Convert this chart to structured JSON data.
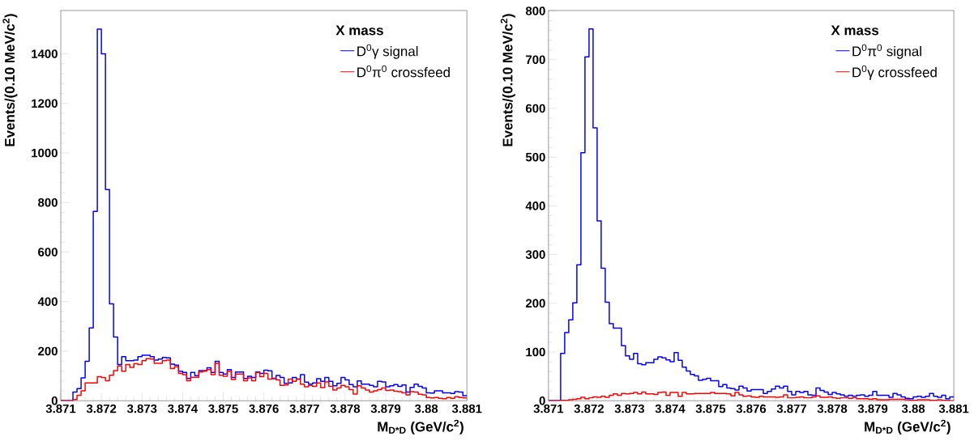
{
  "chart_data": [
    {
      "type": "histogram",
      "xlabel": "M$_{D*D}$ (GeV/c$^{2}$)",
      "ylabel": "Events/(0.10 MeV/c$^{2}$)",
      "legend_title": "X mass",
      "legend": "top right",
      "bins": [
        3.871,
        3.8711,
        3.8712,
        3.8713,
        3.8714,
        3.8715,
        3.8716,
        3.8717,
        3.8718,
        3.8719,
        3.872,
        3.8721,
        3.8722,
        3.8723,
        3.8724,
        3.8725,
        3.8726,
        3.8727,
        3.8728,
        3.8729,
        3.873,
        3.8731,
        3.8732,
        3.8733,
        3.8734,
        3.8735,
        3.8736,
        3.8737,
        3.8738,
        3.8739,
        3.874,
        3.8741,
        3.8742,
        3.8743,
        3.8744,
        3.8745,
        3.8746,
        3.8747,
        3.8748,
        3.8749,
        3.875,
        3.8751,
        3.8752,
        3.8753,
        3.8754,
        3.8755,
        3.8756,
        3.8757,
        3.8758,
        3.8759,
        3.876,
        3.8761,
        3.8762,
        3.8763,
        3.8764,
        3.8765,
        3.8766,
        3.8767,
        3.8768,
        3.8769,
        3.877,
        3.8771,
        3.8772,
        3.8773,
        3.8774,
        3.8775,
        3.8776,
        3.8777,
        3.8778,
        3.8779,
        3.878,
        3.8781,
        3.8782,
        3.8783,
        3.8784,
        3.8785,
        3.8786,
        3.8787,
        3.8788,
        3.8789,
        3.879,
        3.8791,
        3.8792,
        3.8793,
        3.8794,
        3.8795,
        3.8796,
        3.8797,
        3.8798,
        3.8799,
        3.88,
        3.8801,
        3.8802,
        3.8803,
        3.8804,
        3.8805,
        3.8806,
        3.8807,
        3.8808,
        3.8809,
        3.881
      ],
      "xlim": [
        3.871,
        3.881
      ],
      "xticks": [
        3.871,
        3.872,
        3.873,
        3.874,
        3.875,
        3.876,
        3.877,
        3.878,
        3.879,
        3.88,
        3.881
      ],
      "ylim": [
        0,
        1575
      ],
      "yticks": [
        0,
        200,
        400,
        600,
        800,
        1000,
        1200,
        1400
      ],
      "series": [
        {
          "name": "D$^{0}$γ signal",
          "color": "#0000ff",
          "values": [
            0,
            0,
            0,
            35,
            49,
            92,
            159,
            294,
            764,
            1500,
            1400,
            852,
            391,
            257,
            146,
            178,
            162,
            162,
            164,
            178,
            184,
            184,
            178,
            164,
            168,
            175,
            173,
            148,
            144,
            119,
            114,
            90,
            114,
            101,
            122,
            122,
            133,
            114,
            159,
            114,
            108,
            126,
            94,
            116,
            116,
            90,
            99,
            94,
            116,
            110,
            123,
            121,
            89,
            102,
            94,
            70,
            72,
            94,
            87,
            105,
            75,
            67,
            72,
            89,
            78,
            94,
            78,
            60,
            70,
            94,
            84,
            65,
            56,
            80,
            67,
            67,
            62,
            56,
            78,
            76,
            56,
            60,
            65,
            58,
            64,
            35,
            54,
            67,
            58,
            51,
            32,
            31,
            40,
            40,
            32,
            32,
            29,
            37,
            35,
            20
          ]
        },
        {
          "name": "D$^{0}$π$^{0}$ crossfeed",
          "color": "#ff0000",
          "values": [
            0,
            0,
            0,
            5,
            22,
            40,
            72,
            72,
            72,
            97,
            94,
            81,
            103,
            122,
            140,
            119,
            146,
            135,
            149,
            146,
            162,
            170,
            168,
            151,
            151,
            162,
            164,
            130,
            137,
            110,
            105,
            81,
            95,
            95,
            116,
            119,
            126,
            105,
            151,
            103,
            99,
            119,
            86,
            108,
            108,
            81,
            92,
            81,
            114,
            97,
            110,
            87,
            91,
            84,
            62,
            64,
            87,
            78,
            87,
            67,
            56,
            62,
            58,
            72,
            53,
            76,
            58,
            43,
            51,
            62,
            56,
            45,
            27,
            60,
            51,
            43,
            35,
            40,
            45,
            51,
            42,
            43,
            38,
            37,
            32,
            24,
            37,
            35,
            26,
            24,
            13,
            11,
            13,
            10,
            8,
            13,
            10,
            16,
            13,
            11
          ]
        }
      ]
    },
    {
      "type": "histogram",
      "xlabel": "M$_{D*D}$ (GeV/c$^{2}$)",
      "ylabel": "Events/(0.10 MeV/c$^{2}$)",
      "legend_title": "X mass",
      "legend": "top right",
      "bins": [
        3.871,
        3.8711,
        3.8712,
        3.8713,
        3.8714,
        3.8715,
        3.8716,
        3.8717,
        3.8718,
        3.8719,
        3.872,
        3.8721,
        3.8722,
        3.8723,
        3.8724,
        3.8725,
        3.8726,
        3.8727,
        3.8728,
        3.8729,
        3.873,
        3.8731,
        3.8732,
        3.8733,
        3.8734,
        3.8735,
        3.8736,
        3.8737,
        3.8738,
        3.8739,
        3.874,
        3.8741,
        3.8742,
        3.8743,
        3.8744,
        3.8745,
        3.8746,
        3.8747,
        3.8748,
        3.8749,
        3.875,
        3.8751,
        3.8752,
        3.8753,
        3.8754,
        3.8755,
        3.8756,
        3.8757,
        3.8758,
        3.8759,
        3.876,
        3.8761,
        3.8762,
        3.8763,
        3.8764,
        3.8765,
        3.8766,
        3.8767,
        3.8768,
        3.8769,
        3.877,
        3.8771,
        3.8772,
        3.8773,
        3.8774,
        3.8775,
        3.8776,
        3.8777,
        3.8778,
        3.8779,
        3.878,
        3.8781,
        3.8782,
        3.8783,
        3.8784,
        3.8785,
        3.8786,
        3.8787,
        3.8788,
        3.8789,
        3.879,
        3.8791,
        3.8792,
        3.8793,
        3.8794,
        3.8795,
        3.8796,
        3.8797,
        3.8798,
        3.8799,
        3.88,
        3.8801,
        3.8802,
        3.8803,
        3.8804,
        3.8805,
        3.8806,
        3.8807,
        3.8808,
        3.8809,
        3.881
      ],
      "xlim": [
        3.871,
        3.881
      ],
      "xticks": [
        3.871,
        3.872,
        3.873,
        3.874,
        3.875,
        3.876,
        3.877,
        3.878,
        3.879,
        3.88,
        3.881
      ],
      "ylim": [
        0,
        801
      ],
      "yticks": [
        0,
        100,
        200,
        300,
        400,
        500,
        600,
        700,
        800
      ],
      "series": [
        {
          "name": "D$^{0}$π$^{0}$ signal",
          "color": "#0000ff",
          "values": [
            0,
            0,
            0,
            97,
            140,
            166,
            201,
            279,
            509,
            706,
            763,
            560,
            369,
            272,
            202,
            158,
            149,
            149,
            113,
            92,
            85,
            97,
            76,
            74,
            78,
            78,
            85,
            90,
            88,
            84,
            80,
            99,
            83,
            69,
            61,
            54,
            51,
            42,
            44,
            46,
            41,
            41,
            29,
            33,
            26,
            25,
            22,
            30,
            26,
            20,
            23,
            23,
            23,
            15,
            19,
            24,
            30,
            26,
            30,
            19,
            12,
            19,
            17,
            19,
            12,
            11,
            26,
            21,
            18,
            13,
            17,
            14,
            12,
            9,
            11,
            9,
            11,
            12,
            9,
            11,
            19,
            11,
            11,
            11,
            7,
            15,
            12,
            8,
            5,
            4,
            8,
            9,
            7,
            9,
            15,
            9,
            7,
            11,
            4,
            8
          ]
        },
        {
          "name": "D$^{0}$γ crossfeed",
          "color": "#ff0000",
          "values": [
            0,
            0,
            0,
            1,
            1,
            2,
            3,
            4,
            7,
            4,
            6,
            8,
            7,
            9,
            7,
            11,
            14,
            11,
            15,
            14,
            15,
            17,
            14,
            18,
            14,
            14,
            13,
            17,
            18,
            11,
            17,
            17,
            9,
            17,
            14,
            14,
            15,
            15,
            15,
            15,
            17,
            15,
            15,
            15,
            14,
            10,
            17,
            12,
            9,
            10,
            8,
            7,
            9,
            8,
            8,
            8,
            7,
            8,
            12,
            6,
            6,
            7,
            8,
            6,
            6,
            8,
            10,
            7,
            7,
            8,
            6,
            5,
            6,
            6,
            5,
            6,
            4,
            4,
            4,
            3,
            4,
            2,
            2,
            2,
            3,
            3,
            3,
            3,
            2,
            1,
            1,
            2,
            2,
            2,
            1,
            1,
            2,
            1,
            1,
            0
          ]
        }
      ]
    }
  ]
}
